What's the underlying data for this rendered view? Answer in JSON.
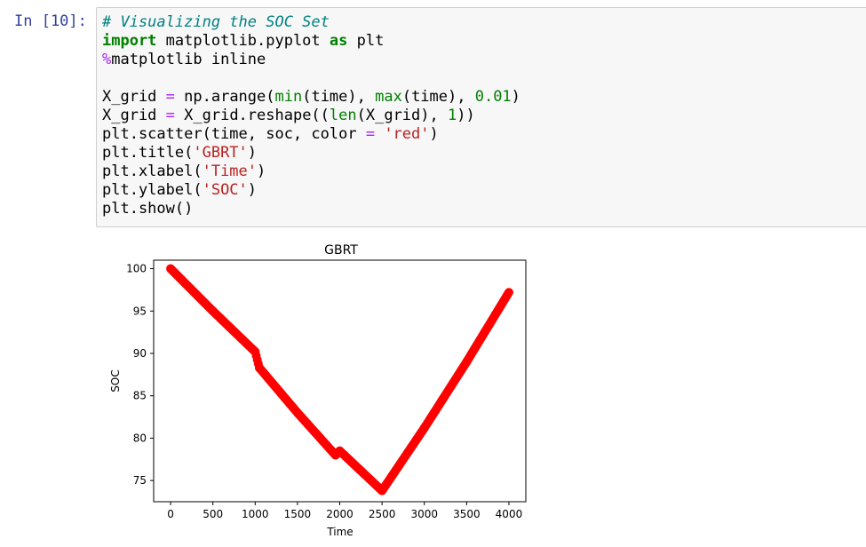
{
  "cell": {
    "prompt": "In [10]:",
    "code": {
      "line1_comment": "# Visualizing the SOC Set",
      "line2_kw1": "import",
      "line2_mod": " matplotlib.pyplot ",
      "line2_kw2": "as",
      "line2_alias": " plt",
      "line3_magic": "%",
      "line3_rest": "matplotlib inline",
      "line5_a": "X_grid ",
      "line5_op": "=",
      "line5_b": " np.arange(",
      "line5_min": "min",
      "line5_c": "(time), ",
      "line5_max": "max",
      "line5_d": "(time), ",
      "line5_num": "0.01",
      "line5_e": ")",
      "line6_a": "X_grid ",
      "line6_op": "=",
      "line6_b": " X_grid.reshape((",
      "line6_len": "len",
      "line6_c": "(X_grid), ",
      "line6_num": "1",
      "line6_d": "))",
      "line7_a": "plt.scatter(time, soc, color ",
      "line7_op": "=",
      "line7_sp": " ",
      "line7_str": "'red'",
      "line7_b": ")",
      "line8_a": "plt.title(",
      "line8_str": "'GBRT'",
      "line8_b": ")",
      "line9_a": "plt.xlabel(",
      "line9_str": "'Time'",
      "line9_b": ")",
      "line10_a": "plt.ylabel(",
      "line10_str": "'SOC'",
      "line10_b": ")",
      "line11": "plt.show()"
    }
  },
  "chart_data": {
    "type": "scatter",
    "title": "GBRT",
    "xlabel": "Time",
    "ylabel": "SOC",
    "xlim": [
      -200,
      4200
    ],
    "ylim": [
      72.5,
      101
    ],
    "xticks": [
      0,
      500,
      1000,
      1500,
      2000,
      2500,
      3000,
      3500,
      4000
    ],
    "yticks": [
      75,
      80,
      85,
      90,
      95,
      100
    ],
    "color": "#ff0000",
    "grid": false,
    "legend": "none",
    "series": [
      {
        "points": [
          [
            0,
            100
          ],
          [
            500,
            95
          ],
          [
            1000,
            90.2
          ],
          [
            1050,
            88.3
          ],
          [
            1500,
            83
          ],
          [
            1950,
            78
          ],
          [
            2000,
            78.5
          ],
          [
            2500,
            73.8
          ],
          [
            3000,
            81.2
          ],
          [
            3500,
            89
          ],
          [
            4000,
            97.2
          ]
        ]
      }
    ]
  }
}
